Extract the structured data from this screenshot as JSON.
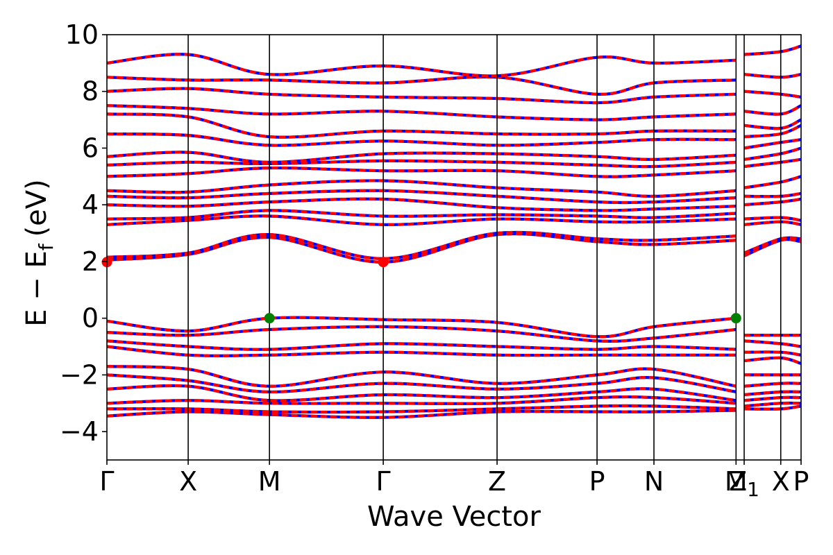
{
  "chart_data": {
    "type": "line",
    "title": "",
    "xlabel": "Wave Vector",
    "ylabel": "E − E_f (eV)",
    "ylabel_parts": {
      "main": "E − E",
      "sub": "f",
      "unit": "(eV)"
    },
    "ylim": [
      -5,
      10
    ],
    "yticks": [
      -4,
      -2,
      0,
      2,
      4,
      6,
      8,
      10
    ],
    "ytick_labels": [
      "−4",
      "−2",
      "0",
      "2",
      "4",
      "6",
      "8",
      "10"
    ],
    "xlim": [
      0,
      8.54
    ],
    "kpoints": [
      {
        "label": "Γ",
        "x": 0.0
      },
      {
        "label": "X",
        "x": 1.0
      },
      {
        "label": "M",
        "x": 2.0
      },
      {
        "label": "Γ",
        "x": 3.4
      },
      {
        "label": "Z",
        "x": 4.8
      },
      {
        "label": "P",
        "x": 6.03
      },
      {
        "label": "N",
        "x": 6.73
      },
      {
        "label": "M",
        "x": 7.74
      },
      {
        "label": "Z",
        "x": 7.84
      },
      {
        "label": "X",
        "x": 8.29
      },
      {
        "label": "P",
        "x": 8.54
      }
    ],
    "kpoint_label_sub": {
      "index": 8,
      "sub": "1"
    },
    "discontinuity_x": 7.74,
    "series_colors": {
      "spin_up": "#ff0000",
      "spin_down": "#0000ff"
    },
    "band_edges": {
      "cbm": [
        {
          "x": 0.0,
          "y": 1.98
        },
        {
          "x": 3.4,
          "y": 1.98
        }
      ],
      "vbm": [
        {
          "x": 2.0,
          "y": 0.0
        },
        {
          "x": 7.74,
          "y": 0.0
        }
      ],
      "cbm_color": "#ff0000",
      "vbm_color": "#008000"
    },
    "conduction_bands_at_kpoints": [
      [
        2.05,
        2.25,
        2.85,
        1.98,
        2.95,
        2.7,
        2.6,
        2.75,
        2.2,
        2.75,
        2.7
      ],
      [
        2.15,
        2.3,
        2.95,
        2.1,
        3.0,
        2.8,
        2.75,
        2.9,
        2.3,
        2.8,
        2.8
      ],
      [
        3.3,
        3.45,
        3.6,
        3.3,
        3.5,
        3.4,
        3.4,
        3.5,
        3.3,
        3.4,
        3.3
      ],
      [
        3.5,
        3.55,
        3.8,
        3.6,
        3.65,
        3.6,
        3.55,
        3.7,
        3.5,
        3.55,
        3.45
      ],
      [
        4.0,
        3.95,
        4.1,
        4.2,
        3.9,
        3.8,
        3.85,
        3.95,
        4.0,
        4.1,
        4.2
      ],
      [
        4.3,
        4.25,
        4.4,
        4.5,
        4.3,
        4.1,
        4.1,
        4.25,
        4.3,
        4.3,
        4.4
      ],
      [
        4.5,
        4.45,
        4.7,
        4.85,
        4.6,
        4.45,
        4.3,
        4.5,
        4.6,
        4.8,
        5.0
      ],
      [
        5.0,
        5.1,
        5.3,
        5.2,
        5.2,
        5.0,
        5.05,
        5.2,
        5.35,
        5.5,
        5.6
      ],
      [
        5.4,
        5.5,
        5.45,
        5.55,
        5.5,
        5.4,
        5.35,
        5.5,
        5.6,
        5.8,
        6.0
      ],
      [
        5.7,
        5.85,
        5.5,
        5.8,
        5.8,
        5.7,
        5.6,
        5.75,
        6.0,
        6.2,
        6.3
      ],
      [
        6.5,
        6.45,
        6.1,
        6.25,
        6.1,
        6.2,
        6.3,
        6.3,
        6.4,
        6.5,
        6.8
      ],
      [
        7.2,
        7.1,
        6.4,
        6.6,
        6.5,
        6.5,
        6.6,
        6.6,
        6.8,
        6.7,
        7.0
      ],
      [
        7.5,
        7.4,
        7.2,
        7.3,
        7.1,
        7.0,
        7.1,
        7.2,
        7.3,
        7.2,
        7.5
      ],
      [
        8.0,
        8.1,
        7.9,
        7.8,
        7.75,
        7.6,
        7.8,
        7.9,
        8.0,
        7.9,
        7.8
      ],
      [
        8.5,
        8.4,
        8.4,
        8.3,
        8.5,
        7.9,
        8.3,
        8.4,
        8.6,
        8.5,
        8.6
      ],
      [
        9.0,
        9.3,
        8.6,
        8.9,
        8.55,
        9.2,
        9.0,
        9.1,
        9.3,
        9.4,
        9.6
      ]
    ],
    "valence_bands_at_kpoints": [
      [
        -0.1,
        -0.45,
        0.0,
        -0.05,
        -0.15,
        -0.65,
        -0.3,
        0.0,
        -0.6,
        -0.6,
        -0.6
      ],
      [
        -0.5,
        -0.6,
        -0.4,
        -0.3,
        -0.45,
        -0.8,
        -0.7,
        -0.4,
        -0.8,
        -0.9,
        -1.0
      ],
      [
        -0.8,
        -1.0,
        -1.1,
        -0.9,
        -1.0,
        -1.1,
        -1.0,
        -1.1,
        -1.2,
        -1.2,
        -1.3
      ],
      [
        -1.0,
        -1.3,
        -1.3,
        -1.2,
        -1.3,
        -1.3,
        -1.3,
        -1.3,
        -1.5,
        -1.4,
        -1.6
      ],
      [
        -1.7,
        -1.8,
        -2.4,
        -1.9,
        -2.3,
        -2.0,
        -1.8,
        -2.4,
        -2.0,
        -2.0,
        -2.0
      ],
      [
        -2.0,
        -2.2,
        -2.6,
        -2.3,
        -2.5,
        -2.3,
        -2.1,
        -2.6,
        -2.4,
        -2.3,
        -2.3
      ],
      [
        -2.5,
        -2.4,
        -2.9,
        -2.7,
        -2.8,
        -2.6,
        -2.5,
        -2.9,
        -2.7,
        -2.6,
        -2.6
      ],
      [
        -3.0,
        -2.9,
        -3.0,
        -3.0,
        -3.0,
        -2.8,
        -2.8,
        -3.0,
        -2.9,
        -2.8,
        -2.8
      ],
      [
        -3.2,
        -3.2,
        -3.3,
        -3.3,
        -3.2,
        -3.1,
        -3.1,
        -3.2,
        -3.1,
        -3.0,
        -3.0
      ],
      [
        -3.45,
        -3.3,
        -3.4,
        -3.5,
        -3.3,
        -3.3,
        -3.3,
        -3.25,
        -3.2,
        -3.2,
        -3.1
      ]
    ]
  }
}
